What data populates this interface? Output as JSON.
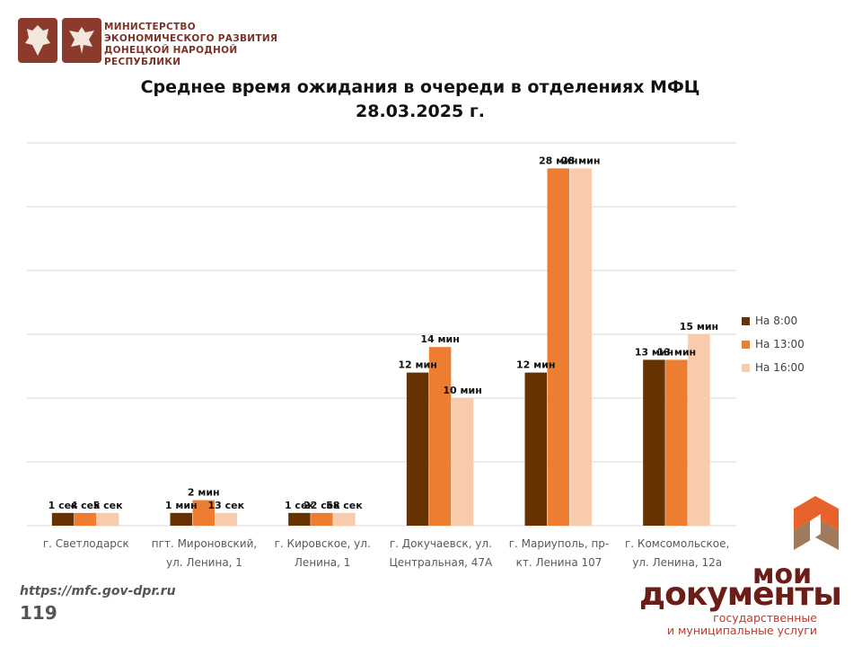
{
  "header": {
    "ministry_line1": "МИНИСТЕРСТВО",
    "ministry_line2": "ЭКОНОМИЧЕСКОГО РАЗВИТИЯ",
    "ministry_line3": "ДОНЕЦКОЙ НАРОДНОЙ РЕСПУБЛИКИ",
    "emblem_icons": [
      "coat-of-arms-icon",
      "eagle-emblem-icon"
    ]
  },
  "footer": {
    "url": "https://mfc.gov-dpr.ru",
    "slide_number": "119"
  },
  "brand": {
    "line1": "мои",
    "line2": "документы",
    "sub1": "государственные",
    "sub2": "и муниципальные услуги",
    "icon": "moi-dokumenty-logo-icon",
    "colors": {
      "dark": "#6b1d17",
      "accent": "#c0392b",
      "orange": "#e8632b"
    }
  },
  "chart_data": {
    "type": "bar",
    "title_line1": "Среднее время ожидания в очереди в отделениях МФЦ",
    "title_line2": "28.03.2025   г.",
    "unit": "minutes",
    "ylim": [
      0,
      30
    ],
    "grid": true,
    "legend_position": "right",
    "categories": [
      [
        "г. Светлодарск"
      ],
      [
        "пгт. Мироновский,",
        "ул. Ленина, 1"
      ],
      [
        "г. Кировское, ул.",
        "Ленина, 1"
      ],
      [
        "г. Докучаевск, ул.",
        "Центральная, 47А"
      ],
      [
        "г. Мариуполь, пр-",
        "кт. Ленина 107"
      ],
      [
        "г. Комсомольское,",
        "ул. Ленина, 12а"
      ]
    ],
    "series": [
      {
        "name": "На 8:00",
        "color": "#663300",
        "values": [
          1,
          1,
          1,
          12,
          12,
          13
        ],
        "labels": [
          "1 сек",
          "1 мин",
          "1 сек",
          "12 мин",
          "12 мин",
          "13 мин"
        ]
      },
      {
        "name": "На 13:00",
        "color": "#ed7d31",
        "values": [
          1,
          2,
          1,
          14,
          28,
          13
        ],
        "labels": [
          "4 сек",
          "2 мин",
          "22 сек",
          "14 мин",
          "28 мин",
          "13 мин"
        ]
      },
      {
        "name": "На 16:00",
        "color": "#f8cbad",
        "values": [
          1,
          1,
          1,
          10,
          28,
          15
        ],
        "labels": [
          "5 сек",
          "13 сек",
          "58 сек",
          "10 мин",
          "28 мин",
          "15 мин"
        ]
      }
    ]
  }
}
